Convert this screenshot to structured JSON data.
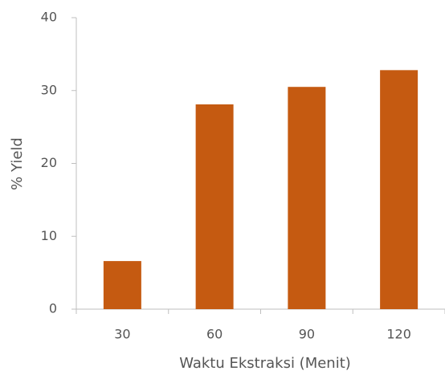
{
  "chart_data": {
    "type": "bar",
    "x_label": "Waktu Ekstraksi (Menit)",
    "y_label": "% Yield",
    "categories": [
      "30",
      "60",
      "90",
      "120"
    ],
    "values": [
      6.6,
      28.1,
      30.5,
      32.8
    ],
    "color": "#c55a11",
    "ylim": [
      0,
      40
    ],
    "yticks": [
      0,
      10,
      20,
      30,
      40
    ]
  }
}
